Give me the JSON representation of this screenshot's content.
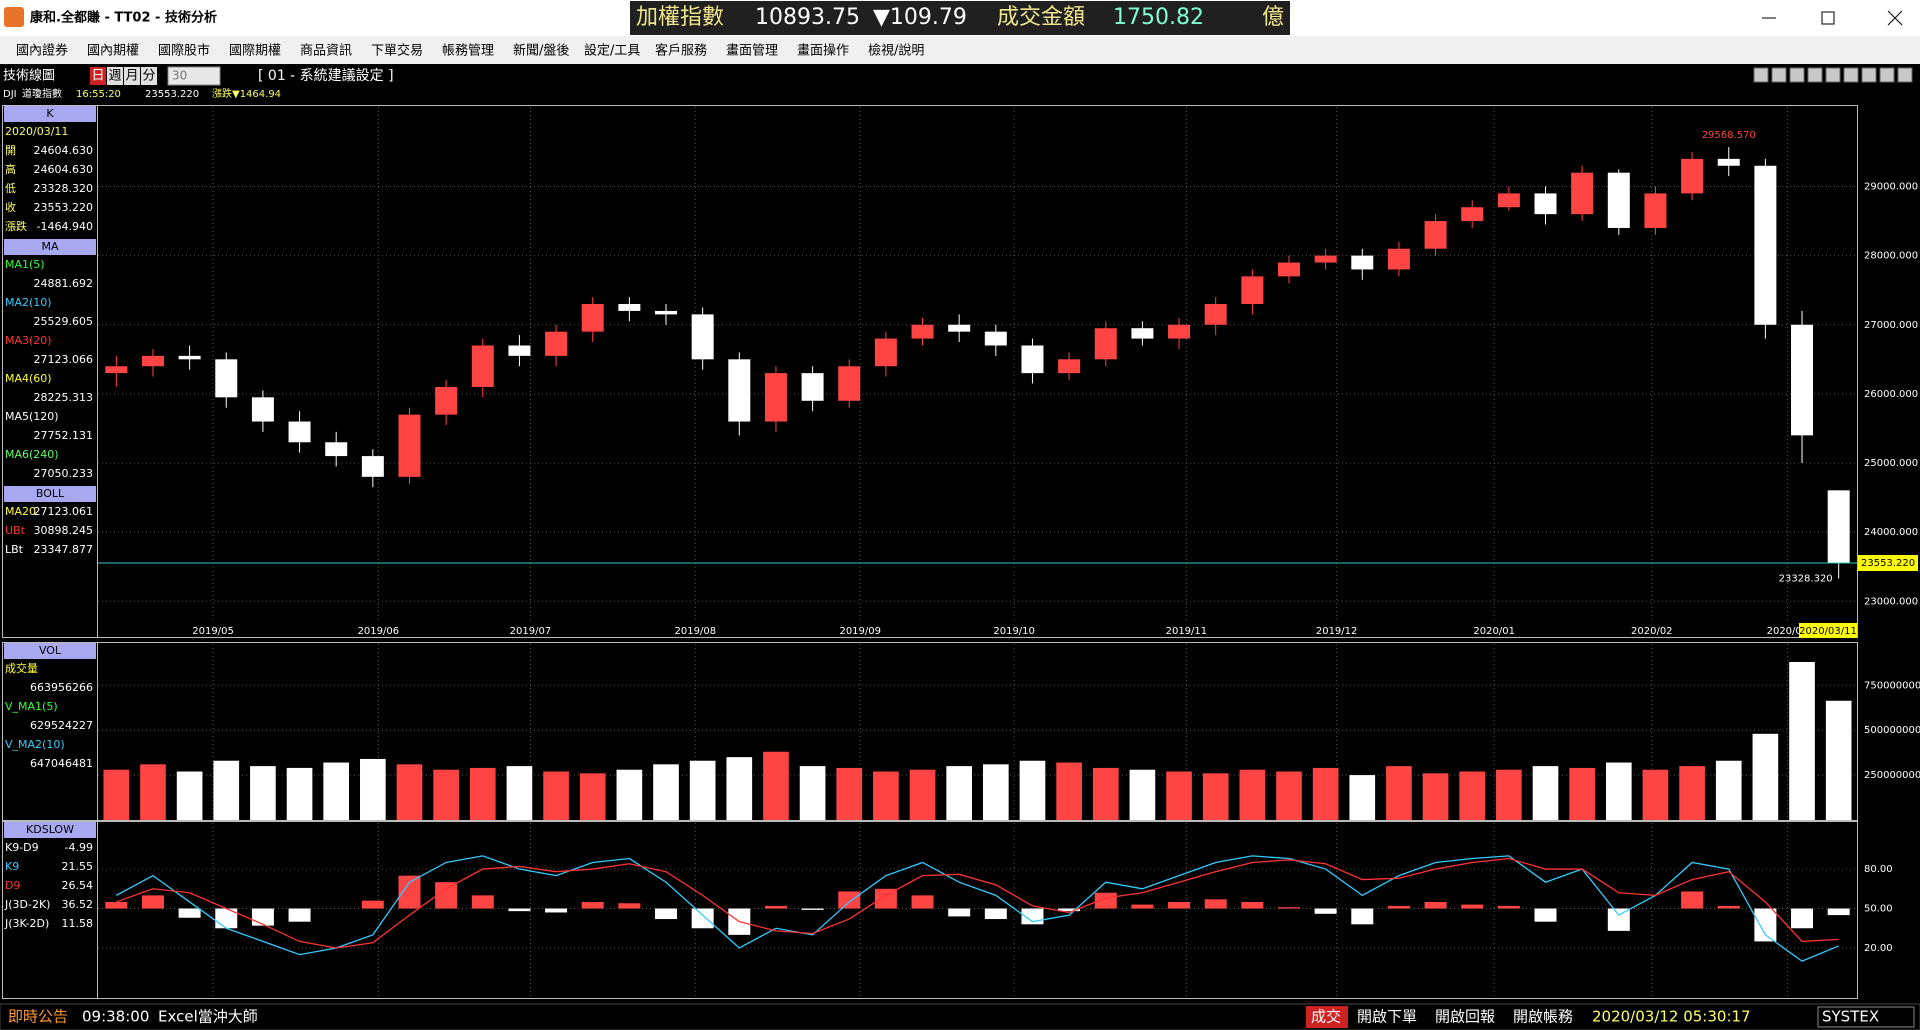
{
  "window": {
    "title": "康和.全都賺 - TT02 - 技術分析",
    "ticker": {
      "index_name": "加權指數",
      "index_value": "10893.75",
      "change": "▼109.79",
      "turnover_label": "成交金額",
      "turnover": "1750.82",
      "unit": "億"
    }
  },
  "menu": [
    "國內證券",
    "國內期權",
    "國際股市",
    "國際期權",
    "商品資訊",
    "下單交易",
    "帳務管理",
    "新聞/盤後",
    "設定/工具",
    "客戶服務",
    "畫面管理",
    "畫面操作",
    "檢視/說明"
  ],
  "toolbar": {
    "title": "技術線圖",
    "periods": [
      "日",
      "週",
      "月",
      "分"
    ],
    "minutes": "30",
    "setting": "[ 01 - 系統建議設定 ]"
  },
  "quote": {
    "symbol": "DJI",
    "name": "道瓊指數",
    "time": "16:55:20",
    "price": "23553.220",
    "change": "漲跌▼1464.94"
  },
  "side_panels": [
    {
      "title": "K",
      "date": "2020/03/11",
      "rows": [
        {
          "label": "開",
          "value": "24604.630",
          "color": "#ffff66"
        },
        {
          "label": "高",
          "value": "24604.630",
          "color": "#ffff66"
        },
        {
          "label": "低",
          "value": "23328.320",
          "color": "#ffff66"
        },
        {
          "label": "收",
          "value": "23553.220",
          "color": "#ffff66"
        },
        {
          "label": "漲跌",
          "value": "-1464.940",
          "color": "#ffff66"
        }
      ]
    },
    {
      "title": "MA",
      "rows": [
        {
          "label": "MA1(5)",
          "value": "24881.692",
          "color": "#33ff33"
        },
        {
          "label": "MA2(10)",
          "value": "25529.605",
          "color": "#33ccff"
        },
        {
          "label": "MA3(20)",
          "value": "27123.066",
          "color": "#ff3333"
        },
        {
          "label": "MA4(60)",
          "value": "28225.313",
          "color": "#ffff33"
        },
        {
          "label": "MA5(120)",
          "value": "27752.131",
          "color": "#ffffff"
        },
        {
          "label": "MA6(240)",
          "value": "27050.233",
          "color": "#66ff66"
        }
      ]
    },
    {
      "title": "BOLL",
      "rows": [
        {
          "label": "MA20",
          "value": "27123.061",
          "color": "#ffff33"
        },
        {
          "label": "UBt",
          "value": "30898.245",
          "color": "#ff3333"
        },
        {
          "label": "LBt",
          "value": "23347.877",
          "color": "#ffffff"
        }
      ]
    },
    {
      "title": "VOL",
      "rows": [
        {
          "label": "成交量",
          "value": "663956266",
          "color": "#ffff33"
        },
        {
          "label": "V_MA1(5)",
          "value": "629524227",
          "color": "#33ff33"
        },
        {
          "label": "V_MA2(10)",
          "value": "647046481",
          "color": "#33ccff"
        }
      ]
    },
    {
      "title": "KDSLOW",
      "rows": [
        {
          "label": "K9-D9",
          "value": "-4.99",
          "color": "#ffffff"
        },
        {
          "label": "K9",
          "value": "21.55",
          "color": "#33ccff"
        },
        {
          "label": "D9",
          "value": "26.54",
          "color": "#ff3333"
        },
        {
          "label": "J(3D-2K)",
          "value": "36.52",
          "color": "#ffffff"
        },
        {
          "label": "J(3K-2D)",
          "value": "11.58",
          "color": "#ffffff"
        }
      ]
    }
  ],
  "chart_data": [
    {
      "type": "candlestick",
      "up_color": "#ff4444",
      "down_color": "#ffffff",
      "grid": true,
      "xlim": [
        -0.5,
        47.5
      ],
      "xticks": [
        {
          "value": 2.64,
          "label": "2019/05"
        },
        {
          "value": 7.15,
          "label": "2019/06"
        },
        {
          "value": 11.3,
          "label": "2019/07"
        },
        {
          "value": 15.8,
          "label": "2019/08"
        },
        {
          "value": 20.3,
          "label": "2019/09"
        },
        {
          "value": 24.5,
          "label": "2019/10"
        },
        {
          "value": 29.2,
          "label": "2019/11"
        },
        {
          "value": 33.3,
          "label": "2019/12"
        },
        {
          "value": 37.6,
          "label": "2020/01"
        },
        {
          "value": 41.9,
          "label": "2020/02"
        },
        {
          "value": 45.6,
          "label": "2020/03"
        }
      ],
      "ylim": [
        22700,
        30150
      ],
      "yticks": [
        {
          "value": 23000,
          "label": "23000.000"
        },
        {
          "value": 24000,
          "label": "24000.000"
        },
        {
          "value": 25000,
          "label": "25000.000"
        },
        {
          "value": 26000,
          "label": "26000.000"
        },
        {
          "value": 27000,
          "label": "27000.000"
        },
        {
          "value": 28000,
          "label": "28000.000"
        },
        {
          "value": 29000,
          "label": "29000.000"
        }
      ],
      "open": [
        26300,
        26400,
        26550,
        26500,
        25950,
        25600,
        25300,
        25100,
        24800,
        25700,
        26100,
        26700,
        26550,
        26900,
        27300,
        27200,
        27150,
        26500,
        25600,
        26300,
        25900,
        26400,
        26800,
        27000,
        26900,
        26700,
        26300,
        26500,
        26950,
        26800,
        27000,
        27300,
        27700,
        27900,
        28000,
        27800,
        28100,
        28500,
        28700,
        28900,
        28600,
        29200,
        28400,
        28900,
        29400,
        29300,
        27000,
        24604.63
      ],
      "high": [
        26550,
        26650,
        26700,
        26600,
        26050,
        25750,
        25450,
        25200,
        25800,
        26200,
        26800,
        26850,
        27000,
        27400,
        27400,
        27300,
        27250,
        26600,
        26400,
        26400,
        26500,
        26900,
        27100,
        27150,
        27000,
        26800,
        26600,
        27050,
        27050,
        27100,
        27400,
        27800,
        28000,
        28100,
        28100,
        28200,
        28600,
        28800,
        29000,
        29000,
        29300,
        29250,
        29000,
        29500,
        29568.57,
        29400,
        27200,
        24604.63
      ],
      "low": [
        26100,
        26250,
        26350,
        25800,
        25450,
        25150,
        24950,
        24650,
        24700,
        25550,
        25950,
        26400,
        26400,
        26750,
        27050,
        27000,
        26350,
        25400,
        25450,
        25750,
        25800,
        26250,
        26700,
        26750,
        26550,
        26150,
        26200,
        26400,
        26700,
        26650,
        26850,
        27150,
        27600,
        27800,
        27650,
        27700,
        28000,
        28400,
        28650,
        28450,
        28500,
        28300,
        28300,
        28800,
        29150,
        26800,
        25000,
        23328.32
      ],
      "close": [
        26400,
        26550,
        26500,
        25950,
        25600,
        25300,
        25100,
        24800,
        25700,
        26100,
        26700,
        26550,
        26900,
        27300,
        27200,
        27150,
        26500,
        25600,
        26300,
        25900,
        26400,
        26800,
        27000,
        26900,
        26700,
        26300,
        26500,
        26950,
        26800,
        27000,
        27300,
        27700,
        27900,
        28000,
        27800,
        28100,
        28500,
        28700,
        28900,
        28600,
        29200,
        28400,
        28900,
        29400,
        29300,
        27000,
        25400,
        23553.22
      ],
      "annotations": [
        {
          "label": "29568.570",
          "value": 29568.57,
          "index": 44,
          "color": "#ff4444"
        },
        {
          "label": "23328.320",
          "value": 23328.32,
          "index": 47,
          "color": "#ffffff"
        }
      ],
      "last_price": {
        "value": 23553.22,
        "label": "23553.220",
        "color": "#33cccc"
      },
      "date_label": "2020/03/11"
    },
    {
      "type": "bar",
      "grid": true,
      "ylim": [
        0,
        980000000
      ],
      "yticks": [
        250000000,
        500000000,
        750000000
      ],
      "values": [
        280000000,
        310000000,
        270000000,
        330000000,
        300000000,
        290000000,
        320000000,
        340000000,
        310000000,
        280000000,
        290000000,
        300000000,
        270000000,
        260000000,
        280000000,
        310000000,
        330000000,
        350000000,
        380000000,
        300000000,
        290000000,
        270000000,
        280000000,
        300000000,
        310000000,
        330000000,
        320000000,
        290000000,
        280000000,
        270000000,
        260000000,
        280000000,
        270000000,
        290000000,
        250000000,
        300000000,
        260000000,
        270000000,
        280000000,
        300000000,
        290000000,
        320000000,
        280000000,
        300000000,
        330000000,
        480000000,
        880000000,
        663956266
      ]
    },
    {
      "type": "line",
      "grid": true,
      "ylim": [
        -18,
        115
      ],
      "yticks": [
        {
          "value": 20,
          "label": "20.00"
        },
        {
          "value": 50,
          "label": "50.00"
        },
        {
          "value": 80,
          "label": "80.00"
        }
      ],
      "series": [
        {
          "color": "#33ccff",
          "values": [
            60,
            75,
            55,
            35,
            25,
            15,
            20,
            30,
            70,
            85,
            90,
            80,
            75,
            85,
            88,
            70,
            45,
            20,
            35,
            30,
            55,
            75,
            85,
            70,
            60,
            40,
            45,
            70,
            65,
            75,
            85,
            90,
            88,
            80,
            60,
            75,
            85,
            88,
            90,
            70,
            80,
            45,
            60,
            85,
            80,
            30,
            10,
            21.55
          ]
        },
        {
          "color": "#ff3333",
          "values": [
            55,
            65,
            62,
            50,
            38,
            25,
            20,
            24,
            45,
            65,
            80,
            82,
            78,
            80,
            84,
            78,
            60,
            40,
            33,
            31,
            42,
            60,
            75,
            76,
            68,
            52,
            47,
            58,
            62,
            70,
            78,
            85,
            87,
            84,
            72,
            73,
            80,
            85,
            88,
            80,
            80,
            62,
            60,
            72,
            78,
            55,
            25,
            26.54
          ]
        }
      ],
      "bars": {
        "baseline": 50,
        "up_color": "#ff4444",
        "down_color": "#ffffff",
        "values": [
          5,
          10,
          -7,
          -15,
          -13,
          -10,
          0,
          6,
          25,
          20,
          10,
          -2,
          -3,
          5,
          4,
          -8,
          -15,
          -20,
          2,
          -1,
          13,
          15,
          10,
          -6,
          -8,
          -12,
          -2,
          12,
          3,
          5,
          7,
          5,
          1,
          -4,
          -12,
          2,
          5,
          3,
          2,
          -10,
          0,
          -17,
          0,
          13,
          2,
          -25,
          -15,
          -4.99
        ]
      }
    }
  ],
  "status_bar": [
    "即時公告",
    "09:38:00",
    "Excel當沖大師",
    "成交",
    "開啟下單",
    "開啟回報",
    "開啟帳務",
    "2020/03/12 05:30:17",
    "SYSTEX"
  ]
}
